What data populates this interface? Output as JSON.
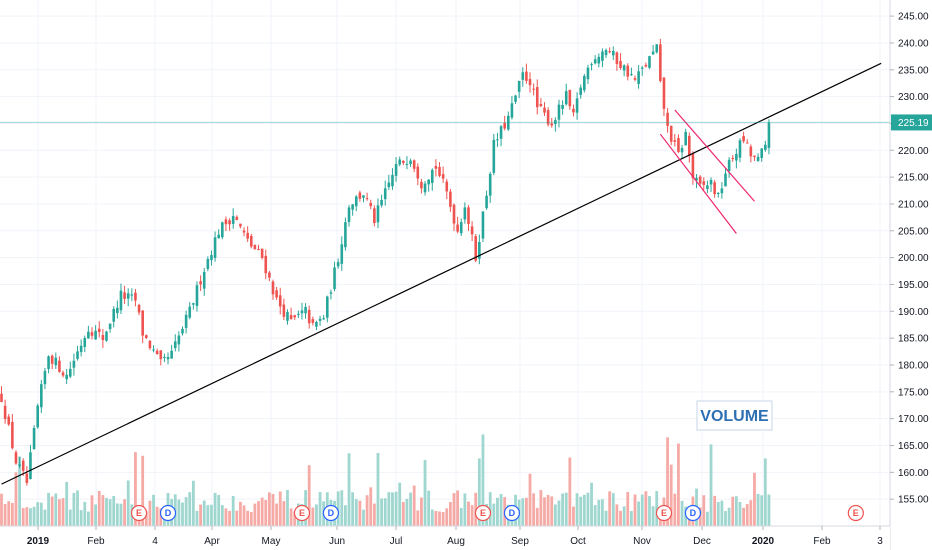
{
  "chart_data": {
    "type": "candlestick",
    "title": "",
    "price_axis": {
      "min": 150,
      "max": 248,
      "ticks": [
        155,
        160,
        165,
        170,
        175,
        180,
        185,
        190,
        195,
        200,
        205,
        210,
        215,
        220,
        225,
        230,
        235,
        240,
        245
      ],
      "tick_labels": [
        "155.00",
        "160.00",
        "165.00",
        "170.00",
        "175.00",
        "180.00",
        "185.00",
        "190.00",
        "195.00",
        "200.00",
        "205.00",
        "210.00",
        "215.00",
        "220.00",
        "225.00",
        "230.00",
        "235.00",
        "240.00",
        "245.00"
      ]
    },
    "time_axis": {
      "labels": [
        "2019",
        "Feb",
        "4",
        "Apr",
        "May",
        "Jun",
        "Jul",
        "Aug",
        "Sep",
        "Oct",
        "Nov",
        "Dec",
        "2020",
        "Feb",
        "3"
      ],
      "bold": [
        "2019",
        "2020"
      ]
    },
    "last_price": 225.19,
    "last_price_label": "225.19",
    "volume_label": "VOLUME",
    "markers": [
      {
        "type": "E",
        "bar": 38
      },
      {
        "type": "D",
        "bar": 46
      },
      {
        "type": "E",
        "bar": 83
      },
      {
        "type": "D",
        "bar": 91
      },
      {
        "type": "E",
        "bar": 133
      },
      {
        "type": "D",
        "bar": 141
      },
      {
        "type": "E",
        "bar": 183
      },
      {
        "type": "D",
        "bar": 191
      },
      {
        "type": "E",
        "bar": 236
      }
    ],
    "keypoints": [
      [
        0,
        174
      ],
      [
        4,
        162
      ],
      [
        7,
        158
      ],
      [
        10,
        172
      ],
      [
        13,
        182
      ],
      [
        18,
        178
      ],
      [
        24,
        187
      ],
      [
        28,
        185
      ],
      [
        33,
        193
      ],
      [
        37,
        192
      ],
      [
        39,
        186
      ],
      [
        44,
        180
      ],
      [
        47,
        182
      ],
      [
        52,
        190
      ],
      [
        56,
        198
      ],
      [
        60,
        205
      ],
      [
        64,
        208
      ],
      [
        68,
        203
      ],
      [
        72,
        200
      ],
      [
        76,
        192
      ],
      [
        80,
        188
      ],
      [
        84,
        190
      ],
      [
        86,
        187
      ],
      [
        89,
        189
      ],
      [
        93,
        200
      ],
      [
        96,
        210
      ],
      [
        100,
        212
      ],
      [
        103,
        207
      ],
      [
        106,
        212
      ],
      [
        109,
        217
      ],
      [
        113,
        219
      ],
      [
        116,
        214
      ],
      [
        120,
        217
      ],
      [
        123,
        212
      ],
      [
        126,
        205
      ],
      [
        128,
        210
      ],
      [
        131,
        200
      ],
      [
        134,
        212
      ],
      [
        136,
        221
      ],
      [
        140,
        226
      ],
      [
        144,
        234
      ],
      [
        146,
        233
      ],
      [
        148,
        228
      ],
      [
        152,
        225
      ],
      [
        156,
        230
      ],
      [
        158,
        226
      ],
      [
        160,
        232
      ],
      [
        163,
        237
      ],
      [
        167,
        239
      ],
      [
        171,
        236
      ],
      [
        175,
        233
      ],
      [
        178,
        236
      ],
      [
        181,
        239
      ],
      [
        182,
        232
      ],
      [
        184,
        224
      ],
      [
        187,
        219
      ],
      [
        189,
        223
      ],
      [
        191,
        215
      ],
      [
        193,
        213
      ],
      [
        196,
        214
      ],
      [
        198,
        211
      ],
      [
        200,
        216
      ],
      [
        203,
        220
      ],
      [
        205,
        222
      ],
      [
        207,
        219
      ],
      [
        209,
        218
      ],
      [
        211,
        221
      ],
      [
        212,
        225.19
      ]
    ],
    "volume_spikes": [
      [
        4,
        30
      ],
      [
        37,
        55
      ],
      [
        39,
        45
      ],
      [
        117,
        42
      ],
      [
        85,
        45
      ],
      [
        104,
        58
      ],
      [
        133,
        72
      ],
      [
        184,
        75
      ],
      [
        187,
        62
      ],
      [
        196,
        58
      ],
      [
        211,
        45
      ]
    ],
    "trendline": {
      "from": {
        "bar": 0,
        "price": 157.8
      },
      "to": {
        "bar": 243,
        "price": 236.2
      }
    },
    "channel": {
      "upper": {
        "from": {
          "bar": 186,
          "price": 227.5
        },
        "to": {
          "bar": 208,
          "price": 210.5
        }
      },
      "lower": {
        "from": {
          "bar": 182,
          "price": 223
        },
        "to": {
          "bar": 203,
          "price": 204.5
        }
      }
    },
    "colors": {
      "up": "#26a69a",
      "down": "#ef5350",
      "up_volume": "#9fd7d0",
      "down_volume": "#f6aaa6",
      "trendline": "#000000",
      "channel": "#f0246e",
      "last_price": "#26a69a",
      "marker_E": "#ef5350",
      "marker_D": "#2962ff"
    }
  }
}
